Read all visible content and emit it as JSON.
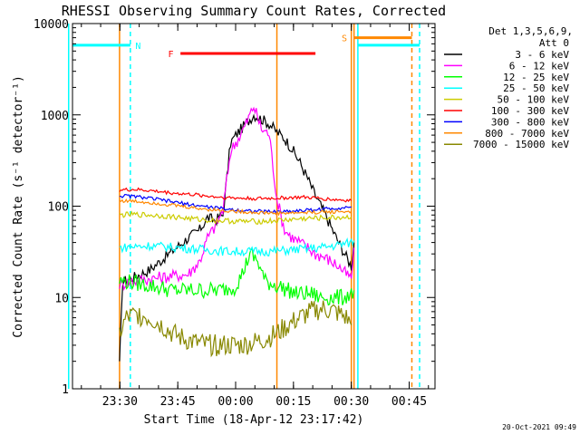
{
  "chart_data": {
    "type": "line",
    "title": "RHESSI Observing Summary Count Rates, Corrected",
    "xlabel": "Start Time (18-Apr-12 23:17:42)",
    "ylabel": "Corrected Count Rate (s⁻¹ detector⁻¹)",
    "footer": "20-Oct-2021 09:49",
    "x_unit": "minutes after 23:17:42",
    "xlim": [
      0,
      94
    ],
    "yscale": "log",
    "ylim": [
      1,
      10000
    ],
    "x_ticks": [
      {
        "label": "23:30",
        "value": 12.3
      },
      {
        "label": "23:45",
        "value": 27.3
      },
      {
        "label": "00:00",
        "value": 42.3
      },
      {
        "label": "00:15",
        "value": 57.3
      },
      {
        "label": "00:30",
        "value": 72.3
      },
      {
        "label": "00:45",
        "value": 87.3
      }
    ],
    "y_ticks": [
      {
        "label": "1",
        "value": 1
      },
      {
        "label": "10",
        "value": 10
      },
      {
        "label": "100",
        "value": 100
      },
      {
        "label": "1000",
        "value": 1000
      },
      {
        "label": "10000",
        "value": 10000
      }
    ],
    "legend": {
      "position": "top-right",
      "header_line1": "Det 1,3,5,6,9,",
      "header_line2": "Att 0"
    },
    "series": [
      {
        "name": "3 - 6 keV",
        "color": "#000000",
        "x": [
          12.2,
          13,
          15,
          20,
          25,
          30,
          33,
          35,
          37,
          39,
          41,
          43,
          45,
          47,
          49,
          51,
          53,
          55,
          57,
          59,
          61,
          63,
          65,
          67,
          69,
          71,
          72.3,
          73
        ],
        "y": [
          1.8,
          15,
          16,
          20,
          30,
          45,
          55,
          75,
          70,
          80,
          500,
          650,
          800,
          1000,
          900,
          800,
          650,
          550,
          420,
          300,
          200,
          130,
          90,
          60,
          40,
          28,
          22,
          40
        ]
      },
      {
        "name": "6 - 12 keV",
        "color": "#ff00ff",
        "x": [
          12.2,
          13,
          15,
          20,
          25,
          30,
          33,
          35,
          37,
          39,
          41,
          43,
          45,
          47,
          49,
          51,
          53,
          55,
          57,
          59,
          61,
          63,
          65,
          67,
          69,
          71,
          72.3,
          73
        ],
        "y": [
          14,
          14,
          15,
          16,
          17,
          18,
          25,
          45,
          60,
          90,
          400,
          550,
          800,
          1250,
          700,
          620,
          120,
          55,
          45,
          40,
          35,
          30,
          28,
          25,
          22,
          18,
          16,
          35
        ]
      },
      {
        "name": "12 - 25 keV",
        "color": "#00ff00",
        "x": [
          12.2,
          14,
          18,
          22,
          26,
          30,
          34,
          38,
          42,
          44,
          46,
          48,
          50,
          52,
          54,
          56,
          58,
          60,
          62,
          64,
          66,
          68,
          70,
          72.3,
          73
        ],
        "y": [
          15,
          15,
          14,
          13,
          12,
          12,
          12,
          12,
          13,
          18,
          30,
          25,
          15,
          14,
          13,
          12,
          11,
          11,
          11,
          10,
          10,
          10,
          10,
          11,
          12
        ]
      },
      {
        "name": "25 - 50 keV",
        "color": "#00ffff",
        "x": [
          12.2,
          16,
          20,
          24,
          28,
          32,
          36,
          40,
          44,
          48,
          52,
          56,
          60,
          64,
          68,
          72.3,
          73
        ],
        "y": [
          35,
          36,
          37,
          36,
          35,
          34,
          33,
          32,
          32,
          32,
          32,
          33,
          34,
          35,
          37,
          40,
          42
        ]
      },
      {
        "name": "50 - 100 keV",
        "color": "#cccc00",
        "x": [
          12.2,
          16,
          20,
          24,
          28,
          32,
          36,
          40,
          44,
          48,
          52,
          56,
          60,
          64,
          68,
          72.3
        ],
        "y": [
          80,
          81,
          80,
          78,
          75,
          72,
          70,
          69,
          68,
          68,
          69,
          71,
          73,
          74,
          75,
          76
        ]
      },
      {
        "name": "100 - 300 keV",
        "color": "#ff0000",
        "x": [
          12.2,
          16,
          20,
          24,
          28,
          32,
          36,
          40,
          44,
          48,
          52,
          56,
          60,
          64,
          68,
          72.3
        ],
        "y": [
          150,
          152,
          148,
          142,
          137,
          133,
          128,
          124,
          122,
          121,
          122,
          124,
          125,
          122,
          118,
          115
        ]
      },
      {
        "name": "300 - 800 keV",
        "color": "#0000ff",
        "x": [
          12.2,
          16,
          20,
          24,
          28,
          32,
          36,
          40,
          44,
          48,
          52,
          56,
          60,
          64,
          68,
          72.3
        ],
        "y": [
          130,
          128,
          122,
          115,
          108,
          102,
          97,
          93,
          90,
          88,
          87,
          88,
          90,
          92,
          95,
          98
        ]
      },
      {
        "name": "800 - 7000 keV",
        "color": "#ff8800",
        "x": [
          12.2,
          16,
          20,
          24,
          28,
          32,
          36,
          40,
          44,
          48,
          52,
          56,
          60,
          64,
          68,
          72.3
        ],
        "y": [
          115,
          113,
          110,
          105,
          100,
          95,
          92,
          89,
          87,
          85,
          84,
          84,
          85,
          86,
          87,
          88
        ]
      },
      {
        "name": "7000 - 15000 keV",
        "color": "#888800",
        "x": [
          12.2,
          14,
          17,
          20,
          23,
          26,
          29,
          32,
          35,
          38,
          41,
          44,
          47,
          50,
          53,
          56,
          59,
          62,
          65,
          68,
          71,
          72.3
        ],
        "y": [
          4,
          6,
          6.5,
          6,
          5,
          4,
          3.5,
          3.2,
          3,
          3,
          3,
          3,
          3.2,
          3.5,
          4,
          5,
          6,
          7,
          7.5,
          7,
          6,
          5
        ]
      }
    ],
    "flag_bars": [
      {
        "label": "N",
        "color": "#00ffff",
        "x_start": -1,
        "x_end": 15,
        "y": 5800,
        "label_x": 17,
        "dashed_line_x": 15
      },
      {
        "label": "F",
        "color": "#ff0000",
        "x_start": 28,
        "x_end": 63,
        "y": 4700,
        "label_x": 25.5
      },
      {
        "label": "S",
        "color": "#ff8800",
        "x_start": 73,
        "x_end": 88,
        "y": 7000,
        "label_x": 70.5,
        "dashed_line_x": 88
      },
      {
        "label": "N",
        "color": "#00ffff",
        "x_start": 74,
        "x_end": 90,
        "y": 5800,
        "dashed_line_x": 90
      }
    ],
    "vertical_markers": [
      {
        "x": -1,
        "color": "#00ffff",
        "style": "solid"
      },
      {
        "x": 12.2,
        "color": "#ff8800",
        "style": "solid"
      },
      {
        "x": 15,
        "color": "#00ffff",
        "style": "dashed"
      },
      {
        "x": 53,
        "color": "#ff8800",
        "style": "solid"
      },
      {
        "x": 72.3,
        "color": "#ff8800",
        "style": "solid"
      },
      {
        "x": 73,
        "color": "#ff8800",
        "style": "solid"
      },
      {
        "x": 74,
        "color": "#00ffff",
        "style": "solid"
      },
      {
        "x": 88,
        "color": "#ff8800",
        "style": "dashed"
      },
      {
        "x": 90,
        "color": "#00ffff",
        "style": "dashed"
      }
    ]
  }
}
